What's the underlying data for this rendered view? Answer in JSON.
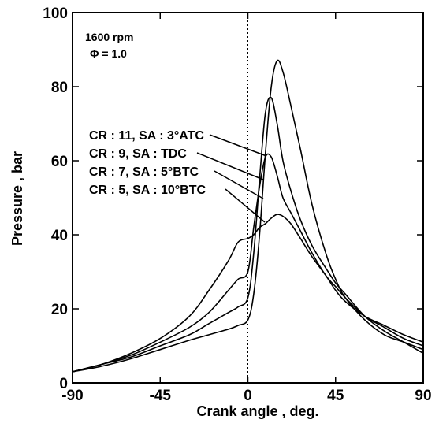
{
  "chart_data": {
    "type": "line",
    "title": "",
    "xlabel": "Crank angle , deg.",
    "ylabel": "Pressure , bar",
    "xlim": [
      -90,
      90
    ],
    "ylim": [
      0,
      100
    ],
    "xticks": [
      -90,
      -45,
      0,
      45,
      90
    ],
    "yticks": [
      0,
      20,
      40,
      60,
      80,
      100
    ],
    "grid": false,
    "annotations": [
      "1600 rpm",
      "Φ = 1.0"
    ],
    "series": [
      {
        "name": "CR : 11, SA : 3°ATC",
        "x": [
          -90,
          -75,
          -60,
          -45,
          -30,
          -20,
          -10,
          -5,
          0,
          3,
          6,
          9,
          12,
          15,
          18,
          22,
          27,
          33,
          40,
          45,
          50,
          60,
          70,
          80,
          90
        ],
        "y": [
          3,
          4.5,
          6.5,
          9,
          11.5,
          13,
          14.5,
          15.5,
          17,
          24,
          40,
          62,
          80,
          87,
          84,
          75,
          63,
          48,
          35,
          28,
          23,
          17,
          13,
          11,
          9
        ]
      },
      {
        "name": "CR : 9,  SA : TDC",
        "x": [
          -90,
          -75,
          -60,
          -45,
          -30,
          -20,
          -10,
          -5,
          0,
          3,
          6,
          9,
          12,
          15,
          18,
          22,
          27,
          33,
          40,
          45,
          50,
          60,
          70,
          80,
          90
        ],
        "y": [
          3,
          5,
          7,
          10,
          13,
          16,
          19,
          20.5,
          23,
          35,
          55,
          73,
          77,
          70,
          60,
          52,
          44,
          37,
          31,
          27,
          24,
          18,
          14,
          11,
          8
        ]
      },
      {
        "name": "CR : 7,  SA : 5°BTC",
        "x": [
          -90,
          -75,
          -60,
          -45,
          -30,
          -20,
          -10,
          -5,
          0,
          3,
          6,
          9,
          12,
          15,
          18,
          22,
          27,
          33,
          40,
          45,
          50,
          60,
          70,
          80,
          90
        ],
        "y": [
          3,
          5,
          7.5,
          11,
          15,
          19,
          25,
          28,
          30,
          42,
          53,
          61,
          61,
          56,
          50,
          46,
          41,
          35,
          29,
          26,
          23,
          18,
          15,
          12,
          10
        ]
      },
      {
        "name": "CR : 5,  SA : 10°BTC",
        "x": [
          -90,
          -75,
          -60,
          -45,
          -30,
          -20,
          -10,
          -5,
          0,
          3,
          6,
          9,
          12,
          15,
          18,
          22,
          27,
          33,
          40,
          45,
          50,
          60,
          70,
          80,
          90
        ],
        "y": [
          3,
          5,
          8,
          12,
          18,
          25,
          33,
          38,
          39,
          40,
          42,
          43,
          44.5,
          45.5,
          45,
          43,
          39,
          34,
          29,
          25,
          22,
          18,
          15.5,
          13,
          11
        ]
      }
    ]
  }
}
